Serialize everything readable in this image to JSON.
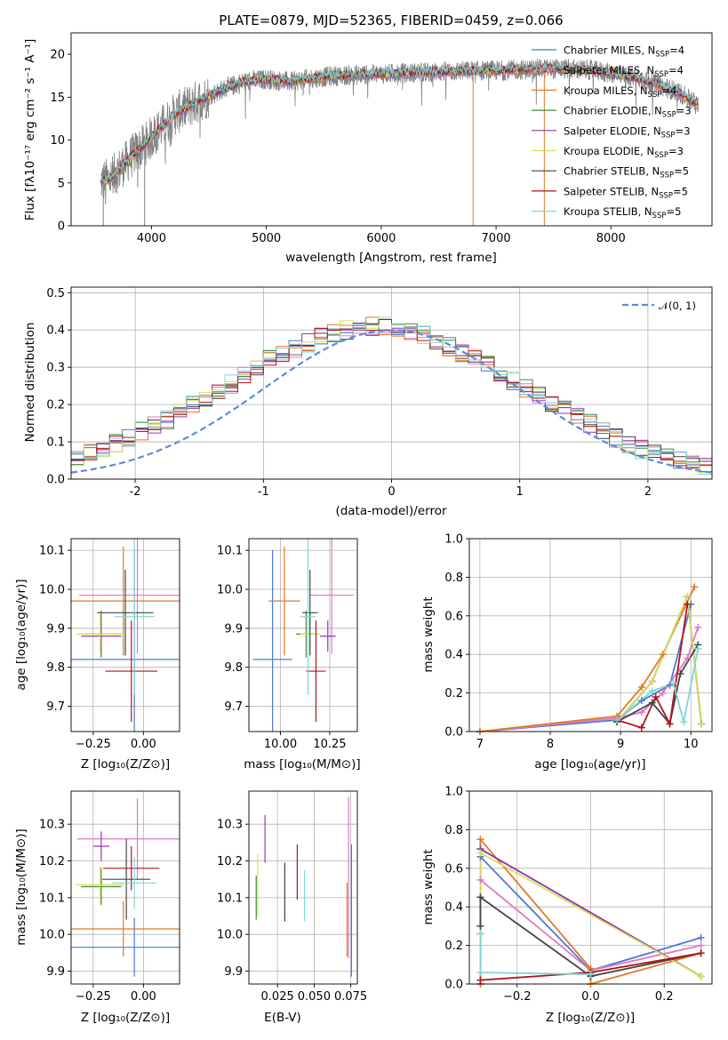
{
  "chart_data": [
    {
      "id": "spectrum",
      "type": "line",
      "title": "PLATE=0879, MJD=52365, FIBERID=0459, z=0.066",
      "xlabel": "wavelength [Angstrom, rest frame]",
      "ylabel": "Flux [fλ10⁻¹⁷ erg cm⁻² s⁻¹ A⁻¹]",
      "xlim": [
        3300,
        8880
      ],
      "ylim": [
        0,
        22.5
      ],
      "xticks": [
        4000,
        5000,
        6000,
        7000,
        8000
      ],
      "yticks": [
        0,
        5,
        10,
        15,
        20
      ],
      "legend_position": "top-right",
      "data_color": "#808080",
      "continuum": {
        "x": [
          3580,
          3650,
          3750,
          3850,
          3950,
          4050,
          4200,
          4400,
          4600,
          4800,
          5000,
          5200,
          5400,
          5600,
          5800,
          6000,
          6200,
          6400,
          6600,
          6800,
          7000,
          7200,
          7400,
          7600,
          7800,
          8000,
          8200,
          8400,
          8600,
          8760
        ],
        "y": [
          5.2,
          5.6,
          7.0,
          8.4,
          9.6,
          11.0,
          13.0,
          14.5,
          15.8,
          16.8,
          17.1,
          16.8,
          17.2,
          17.5,
          17.6,
          17.7,
          17.8,
          17.9,
          18.0,
          18.1,
          18.1,
          18.2,
          18.3,
          18.3,
          18.2,
          17.8,
          17.3,
          16.5,
          15.5,
          14.0
        ]
      },
      "series": [
        {
          "name": "Chabrier MILES, N_SSP=4",
          "label_main": "Chabrier MILES, N",
          "label_sub": "SSP",
          "label_tail": "=4",
          "color": "#4c78d8"
        },
        {
          "name": "Salpeter MILES, N_SSP=4",
          "label_main": "Salpeter MILES, N",
          "label_sub": "SSP",
          "label_tail": "=4",
          "color": "#e377c2"
        },
        {
          "name": "Kroupa MILES, N_SSP=4",
          "label_main": "Kroupa MILES, N",
          "label_sub": "SSP",
          "label_tail": "=4",
          "color": "#e07b22"
        },
        {
          "name": "Chabrier ELODIE, N_SSP=3",
          "label_main": "Chabrier ELODIE, N",
          "label_sub": "SSP",
          "label_tail": "=3",
          "color": "#3d8c3d"
        },
        {
          "name": "Salpeter ELODIE, N_SSP=3",
          "label_main": "Salpeter ELODIE, N",
          "label_sub": "SSP",
          "label_tail": "=3",
          "color": "#9c36b5"
        },
        {
          "name": "Kroupa ELODIE, N_SSP=3",
          "label_main": "Kroupa ELODIE, N",
          "label_sub": "SSP",
          "label_tail": "=3",
          "color": "#d4e157"
        },
        {
          "name": "Chabrier STELIB, N_SSP=5",
          "label_main": "Chabrier STELIB, N",
          "label_sub": "SSP",
          "label_tail": "=5",
          "color": "#444444"
        },
        {
          "name": "Salpeter STELIB, N_SSP=5",
          "label_main": "Salpeter STELIB, N",
          "label_sub": "SSP",
          "label_tail": "=5",
          "color": "#b5121b"
        },
        {
          "name": "Kroupa STELIB, N_SSP=5",
          "label_main": "Kroupa STELIB, N",
          "label_sub": "SSP",
          "label_tail": "=5",
          "color": "#7fd6d6"
        }
      ]
    },
    {
      "id": "residuals",
      "type": "histogram",
      "xlabel": "(data-model)/error",
      "ylabel": "Normed distribution",
      "xlim": [
        -2.5,
        2.5
      ],
      "ylim": [
        0,
        0.515
      ],
      "xticks": [
        -2,
        -1,
        0,
        1,
        2
      ],
      "yticks": [
        0.0,
        0.1,
        0.2,
        0.3,
        0.4,
        0.5
      ],
      "legend": "𝒩(0, 1)",
      "legend_position": "top-right",
      "gauss_color": "#5b8bd9",
      "bin_width": 0.1,
      "base_heights": [
        0.02,
        0.025,
        0.03,
        0.035,
        0.045,
        0.055,
        0.07,
        0.08,
        0.095,
        0.11,
        0.13,
        0.145,
        0.16,
        0.18,
        0.2,
        0.22,
        0.24,
        0.255,
        0.275,
        0.3,
        0.32,
        0.335,
        0.35,
        0.365,
        0.38,
        0.39,
        0.4,
        0.405,
        0.41,
        0.41,
        0.405,
        0.395,
        0.385,
        0.37,
        0.355,
        0.34,
        0.325,
        0.305,
        0.285,
        0.265,
        0.245,
        0.225,
        0.205,
        0.185,
        0.165,
        0.15,
        0.13,
        0.11,
        0.095,
        0.08,
        0.07,
        0.06,
        0.048,
        0.04,
        0.033,
        0.027,
        0.022,
        0.018,
        0.015,
        0.012
      ],
      "bins_start": -3.0
    },
    {
      "id": "age-vs-Z",
      "type": "errorbar",
      "xlabel": "Z [log₁₀(Z/Z⊙)]",
      "ylabel": "age  [log₁₀(age/yr)]",
      "xlim": [
        -0.36,
        0.18
      ],
      "ylim": [
        9.635,
        10.13
      ],
      "xticks": [
        -0.25,
        0.0
      ],
      "xtick_labels": [
        "−0.25",
        "0.00"
      ],
      "yticks": [
        9.7,
        9.8,
        9.9,
        10.0,
        10.1
      ],
      "points": [
        {
          "x": -0.045,
          "xerr": 0.35,
          "y": 9.82,
          "yerr": 0.28,
          "color": "#4c78d8"
        },
        {
          "x": -0.03,
          "xerr": 0.29,
          "y": 9.985,
          "yerr": 0.15,
          "color": "#e377c2"
        },
        {
          "x": -0.1,
          "xerr": 0.3,
          "y": 9.97,
          "yerr": 0.14,
          "color": "#e07b22"
        },
        {
          "x": -0.21,
          "xerr": 0.11,
          "y": 9.885,
          "yerr": 0.06,
          "color": "#3d8c3d"
        },
        {
          "x": -0.21,
          "xerr": 0.1,
          "y": 9.88,
          "yerr": 0.04,
          "color": "#9c36b5"
        },
        {
          "x": -0.215,
          "xerr": 0.12,
          "y": 9.885,
          "yerr": 0.05,
          "color": "#d4e157"
        },
        {
          "x": -0.09,
          "xerr": 0.14,
          "y": 9.94,
          "yerr": 0.11,
          "color": "#444444"
        },
        {
          "x": -0.06,
          "xerr": 0.13,
          "y": 9.79,
          "yerr": 0.13,
          "color": "#b5121b"
        },
        {
          "x": -0.045,
          "xerr": 0.1,
          "y": 9.93,
          "yerr": 0.2,
          "color": "#7fd6d6"
        }
      ]
    },
    {
      "id": "age-vs-mass",
      "type": "errorbar",
      "xlabel": "mass [log₁₀(M/M⊙)]",
      "ylabel": "",
      "xlim": [
        9.84,
        10.39
      ],
      "ylim": [
        9.635,
        10.13
      ],
      "xticks": [
        10.0,
        10.25
      ],
      "xtick_labels": [
        "10.00",
        "10.25"
      ],
      "yticks": [
        9.7,
        9.8,
        9.9,
        10.0,
        10.1
      ],
      "points": [
        {
          "x": 9.96,
          "xerr": 0.1,
          "y": 9.82,
          "yerr": 0.28,
          "color": "#4c78d8"
        },
        {
          "x": 10.26,
          "xerr": 0.11,
          "y": 9.985,
          "yerr": 0.15,
          "color": "#e377c2"
        },
        {
          "x": 10.02,
          "xerr": 0.08,
          "y": 9.97,
          "yerr": 0.14,
          "color": "#e07b22"
        },
        {
          "x": 10.13,
          "xerr": 0.05,
          "y": 9.885,
          "yerr": 0.06,
          "color": "#3d8c3d"
        },
        {
          "x": 10.24,
          "xerr": 0.04,
          "y": 9.88,
          "yerr": 0.04,
          "color": "#9c36b5"
        },
        {
          "x": 10.15,
          "xerr": 0.05,
          "y": 9.885,
          "yerr": 0.05,
          "color": "#d4e157"
        },
        {
          "x": 10.15,
          "xerr": 0.04,
          "y": 9.94,
          "yerr": 0.11,
          "color": "#444444"
        },
        {
          "x": 10.18,
          "xerr": 0.05,
          "y": 9.79,
          "yerr": 0.13,
          "color": "#b5121b"
        },
        {
          "x": 10.14,
          "xerr": 0.04,
          "y": 9.93,
          "yerr": 0.2,
          "color": "#7fd6d6"
        }
      ]
    },
    {
      "id": "weight-vs-age",
      "type": "line",
      "xlabel": "age  [log₁₀(age/yr)]",
      "ylabel": "mass weight",
      "xlim": [
        6.85,
        10.3
      ],
      "ylim": [
        0,
        1
      ],
      "xticks": [
        7,
        8,
        9,
        10
      ],
      "yticks": [
        0.0,
        0.2,
        0.4,
        0.6,
        0.8,
        1.0
      ],
      "series": [
        {
          "color": "#4c78d8",
          "x": [
            7.0,
            8.95,
            9.3,
            9.7,
            10.0
          ],
          "y": [
            0.0,
            0.06,
            0.16,
            0.24,
            0.66
          ]
        },
        {
          "color": "#e377c2",
          "x": [
            7.0,
            8.95,
            9.3,
            9.6,
            9.95,
            10.1
          ],
          "y": [
            0.0,
            0.07,
            0.1,
            0.2,
            0.38,
            0.54
          ]
        },
        {
          "color": "#e07b22",
          "x": [
            7.0,
            8.95,
            9.3,
            9.6,
            10.05
          ],
          "y": [
            0.0,
            0.08,
            0.23,
            0.4,
            0.75
          ]
        },
        {
          "color": "#3d8c3d",
          "x": [
            8.95,
            9.45,
            9.95,
            10.15
          ],
          "y": [
            0.05,
            0.26,
            0.7,
            0.04
          ]
        },
        {
          "color": "#9c36b5",
          "x": [
            8.95,
            9.45,
            9.95,
            10.15
          ],
          "y": [
            0.05,
            0.26,
            0.7,
            0.04
          ]
        },
        {
          "color": "#d4e157",
          "x": [
            8.95,
            9.45,
            9.95,
            10.15
          ],
          "y": [
            0.05,
            0.26,
            0.7,
            0.04
          ]
        },
        {
          "color": "#444444",
          "x": [
            8.95,
            9.45,
            9.7,
            9.85,
            10.1
          ],
          "y": [
            0.05,
            0.15,
            0.04,
            0.3,
            0.45
          ]
        },
        {
          "color": "#b5121b",
          "x": [
            8.95,
            9.3,
            9.5,
            9.7,
            9.95
          ],
          "y": [
            0.06,
            0.02,
            0.18,
            0.04,
            0.66
          ]
        },
        {
          "color": "#7fd6d6",
          "x": [
            8.95,
            9.45,
            9.75,
            9.9,
            10.1
          ],
          "y": [
            0.06,
            0.21,
            0.25,
            0.05,
            0.43
          ]
        }
      ]
    },
    {
      "id": "mass-vs-Z",
      "type": "errorbar",
      "xlabel": "Z [log₁₀(Z/Z⊙)]",
      "ylabel": "mass [log₁₀(M/M⊙)]",
      "xlim": [
        -0.36,
        0.18
      ],
      "ylim": [
        9.865,
        10.39
      ],
      "xticks": [
        -0.25,
        0.0
      ],
      "xtick_labels": [
        "−0.25",
        "0.00"
      ],
      "yticks": [
        9.9,
        10.0,
        10.1,
        10.2,
        10.3
      ],
      "points": [
        {
          "x": -0.045,
          "xerr": 0.35,
          "y": 9.965,
          "yerr": 0.08,
          "color": "#4c78d8"
        },
        {
          "x": -0.03,
          "xerr": 0.3,
          "y": 10.26,
          "yerr": 0.11,
          "color": "#e377c2"
        },
        {
          "x": -0.1,
          "xerr": 0.3,
          "y": 10.015,
          "yerr": 0.075,
          "color": "#e07b22"
        },
        {
          "x": -0.21,
          "xerr": 0.1,
          "y": 10.13,
          "yerr": 0.05,
          "color": "#3d8c3d"
        },
        {
          "x": -0.21,
          "xerr": 0.04,
          "y": 10.24,
          "yerr": 0.04,
          "color": "#9c36b5"
        },
        {
          "x": -0.215,
          "xerr": 0.12,
          "y": 10.135,
          "yerr": 0.05,
          "color": "#d4e157"
        },
        {
          "x": -0.085,
          "xerr": 0.12,
          "y": 10.15,
          "yerr": 0.11,
          "color": "#444444"
        },
        {
          "x": -0.06,
          "xerr": 0.14,
          "y": 10.18,
          "yerr": 0.06,
          "color": "#b5121b"
        },
        {
          "x": -0.045,
          "xerr": 0.11,
          "y": 10.14,
          "yerr": 0.07,
          "color": "#7fd6d6"
        }
      ]
    },
    {
      "id": "mass-vs-ebv",
      "type": "errorbar",
      "xlabel": "E(B-V)",
      "ylabel": "",
      "xlim": [
        0.0055,
        0.0795
      ],
      "ylim": [
        9.865,
        10.39
      ],
      "xticks": [
        0.025,
        0.05,
        0.075
      ],
      "xtick_labels": [
        "0.025",
        "0.050",
        "0.075"
      ],
      "yticks": [
        9.9,
        10.0,
        10.1,
        10.2,
        10.3
      ],
      "points": [
        {
          "x": 0.0755,
          "y": 10.065,
          "yerr": 0.18,
          "color": "#4c78d8"
        },
        {
          "x": 0.0735,
          "y": 10.155,
          "yerr": 0.22,
          "color": "#e377c2"
        },
        {
          "x": 0.0725,
          "y": 10.04,
          "yerr": 0.1,
          "color": "#e07b22"
        },
        {
          "x": 0.0105,
          "y": 10.1,
          "yerr": 0.06,
          "color": "#3d8c3d"
        },
        {
          "x": 0.0165,
          "y": 10.26,
          "yerr": 0.065,
          "color": "#9c36b5"
        },
        {
          "x": 0.0115,
          "y": 10.135,
          "yerr": 0.085,
          "color": "#d4e157"
        },
        {
          "x": 0.03,
          "y": 10.115,
          "yerr": 0.08,
          "color": "#444444"
        },
        {
          "x": 0.0385,
          "y": 10.17,
          "yerr": 0.075,
          "color": "#b5121b"
        },
        {
          "x": 0.0435,
          "y": 10.105,
          "yerr": 0.07,
          "color": "#7fd6d6"
        }
      ]
    },
    {
      "id": "weight-vs-Z",
      "type": "line",
      "xlabel": "Z [log₁₀(Z/Z⊙)]",
      "ylabel": "mass weight",
      "xlim": [
        -0.33,
        0.33
      ],
      "ylim": [
        0,
        1
      ],
      "xticks": [
        -0.2,
        0.0,
        0.2
      ],
      "xtick_labels": [
        "−0.2",
        "0.0",
        "0.2"
      ],
      "yticks": [
        0.0,
        0.2,
        0.4,
        0.6,
        0.8,
        1.0
      ],
      "series": [
        {
          "color": "#4c78d8",
          "x": [
            -0.3,
            -0.3,
            0.0,
            0.3
          ],
          "y": [
            0.0,
            0.66,
            0.07,
            0.24
          ]
        },
        {
          "color": "#e377c2",
          "x": [
            -0.3,
            -0.3,
            0.0,
            0.3
          ],
          "y": [
            0.0,
            0.54,
            0.07,
            0.2
          ]
        },
        {
          "color": "#e07b22",
          "x": [
            -0.3,
            -0.3,
            0.0,
            0.0,
            0.3
          ],
          "y": [
            0.0,
            0.75,
            0.08,
            0.0,
            0.16
          ]
        },
        {
          "color": "#3d8c3d",
          "x": [
            -0.3,
            -0.3,
            0.3
          ],
          "y": [
            0.26,
            0.7,
            0.04
          ]
        },
        {
          "color": "#9c36b5",
          "x": [
            -0.3,
            -0.3,
            0.3
          ],
          "y": [
            0.26,
            0.7,
            0.04
          ]
        },
        {
          "color": "#d4e157",
          "x": [
            -0.3,
            -0.3,
            0.3
          ],
          "y": [
            0.26,
            0.68,
            0.04
          ]
        },
        {
          "color": "#444444",
          "x": [
            -0.3,
            -0.3,
            0.0,
            0.3
          ],
          "y": [
            0.3,
            0.45,
            0.04,
            0.16
          ]
        },
        {
          "color": "#b5121b",
          "x": [
            -0.3,
            0.0,
            0.3
          ],
          "y": [
            0.02,
            0.06,
            0.16
          ]
        },
        {
          "color": "#7fd6d6",
          "x": [
            -0.3,
            -0.3,
            0.0,
            0.0
          ],
          "y": [
            0.26,
            0.06,
            0.05,
            0.05
          ]
        }
      ]
    }
  ]
}
